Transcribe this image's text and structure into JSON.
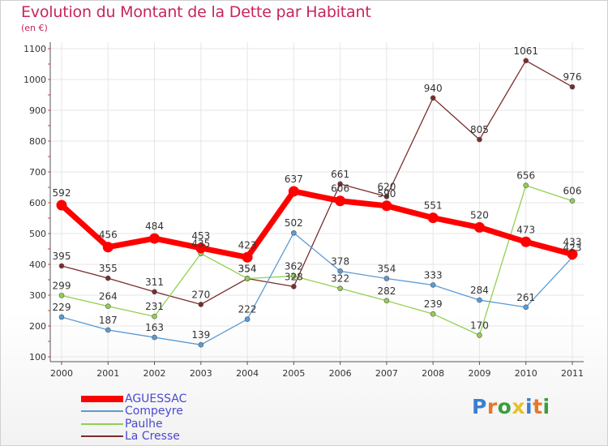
{
  "header": {
    "title": "Evolution du Montant de la Dette par Habitant",
    "unit": "(en €)"
  },
  "colors": {
    "title": "#c8245e",
    "legend_text": "#4a4ad0"
  },
  "logo": {
    "text": "Proxiti",
    "letters": [
      "P",
      "r",
      "o",
      "x",
      "i",
      "t",
      "i"
    ],
    "colors": [
      "#3a7fd0",
      "#e8762b",
      "#3a9e3a",
      "#e8c02b",
      "#3a7fd0",
      "#e8762b",
      "#3a9e3a"
    ]
  },
  "chart_data": {
    "type": "line",
    "title": "Evolution du Montant de la Dette par Habitant",
    "subtitle": "(en €)",
    "xlabel": "",
    "ylabel": "",
    "x": [
      "2000",
      "2001",
      "2002",
      "2003",
      "2004",
      "2005",
      "2006",
      "2007",
      "2008",
      "2009",
      "2010",
      "2011"
    ],
    "ylim": [
      100,
      1100
    ],
    "yticks": [
      "100",
      "200",
      "300",
      "400",
      "500",
      "600",
      "700",
      "800",
      "900",
      "1000",
      "1100"
    ],
    "grid": true,
    "legend_position": "bottom-left",
    "series": [
      {
        "name": "AGUESSAC",
        "color": "#ff0000",
        "values": [
          592,
          456,
          484,
          453,
          423,
          637,
          606,
          590,
          551,
          520,
          473,
          433
        ],
        "labels": [
          "592",
          "456",
          "484",
          "453",
          "423",
          "637",
          "606",
          "590",
          "551",
          "520",
          "473",
          "433"
        ]
      },
      {
        "name": "Compeyre",
        "color": "#5b9bd5",
        "values": [
          229,
          187,
          163,
          139,
          222,
          502,
          378,
          354,
          333,
          284,
          261,
          423
        ],
        "labels": [
          "229",
          "187",
          "163",
          "139",
          "222",
          "502",
          "378",
          "354",
          "333",
          "284",
          "261",
          "423"
        ]
      },
      {
        "name": "Paulhe",
        "color": "#92d050",
        "values": [
          299,
          264,
          231,
          435,
          354,
          362,
          322,
          282,
          239,
          170,
          656,
          606
        ],
        "labels": [
          "299",
          "264",
          "231",
          "435",
          "354",
          "362",
          "322",
          "282",
          "239",
          "170",
          "656",
          "606"
        ]
      },
      {
        "name": "La Cresse",
        "color": "#7b2c2c",
        "values": [
          395,
          355,
          311,
          270,
          354,
          328,
          661,
          620,
          940,
          805,
          1061,
          976
        ],
        "labels": [
          "395",
          "355",
          "311",
          "270",
          "354",
          "328",
          "661",
          "620",
          "940",
          "805",
          "1061",
          "976"
        ]
      }
    ]
  }
}
